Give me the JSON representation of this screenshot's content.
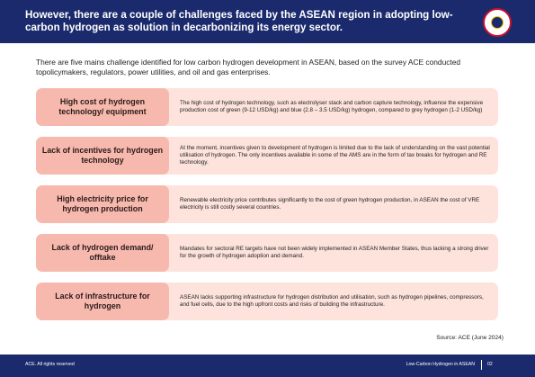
{
  "header": {
    "title": "However, there are a couple of challenges faced by the ASEAN region in adopting low-carbon hydrogen as solution in decarbonizing its energy sector.",
    "logo_icon": "asean-centre-for-energy-logo"
  },
  "intro": "There are five mains challenge identified for low carbon hydrogen development in ASEAN, based on the survey ACE conducted topolicymakers, regulators, power utilities, and oil and gas enterprises.",
  "challenges": [
    {
      "label": "High cost of hydrogen technology/ equipment",
      "description": "The high cost of hydrogen technology, such as electrolyser stack and carbon capture technology, influence the expensive production cost of green (9-12 USD/kg) and blue (2.8 – 3.5 USD/kg) hydrogen, compared to grey hydrogen (1-2 USD/kg)"
    },
    {
      "label": "Lack of incentives for hydrogen technology",
      "description": "At the moment, incentives given to development of hydrogen is limited due to the lack of understanding on the vast potential utilisation of hydrogen. The only incentives available in some of the AMS are in the form of tax breaks for hydrogen and RE technology."
    },
    {
      "label": "High electricity price for hydrogen production",
      "description": "Renewable electricity price contributes significantly to the cost of green hydrogen production, in ASEAN the cost of VRE electricity is still costly several countries."
    },
    {
      "label": "Lack of hydrogen demand/ offtake",
      "description": "Mandates for sectoral RE targets have not been widely implemented in ASEAN Member States, thus lacking a strong driver for the growth of hydrogen adoption and demand."
    },
    {
      "label": "Lack of infrastructure for hydrogen",
      "description": "ASEAN lacks supporting infrastructure for hydrogen distribution and utilisation, such as hydrogen pipelines, compressors, and fuel cells, due to the high upfront costs and risks of building the infrastructure."
    }
  ],
  "source": "Source: ACE (June 2024)",
  "footer": {
    "copyright": "ACE. All rights reserved",
    "doc_title": "Low-Carbon Hydrogen in ASEAN",
    "page": "02"
  },
  "colors": {
    "header_bg": "#1a2a6c",
    "label_bg": "#f7b9ad",
    "row_bg": "#fde3dc"
  }
}
